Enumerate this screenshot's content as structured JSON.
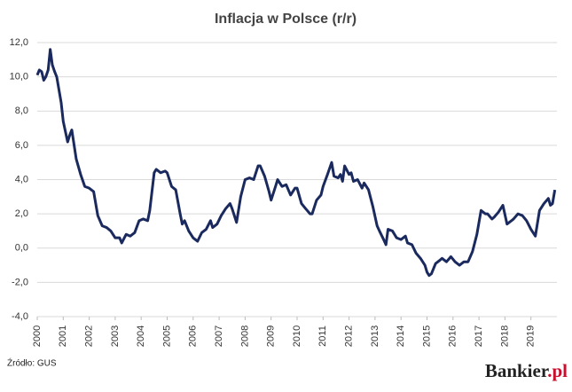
{
  "chart_data": {
    "type": "line",
    "title": "Inflacja w Polsce (r/r)",
    "x": [
      2000.0,
      2000.08,
      2000.17,
      2000.25,
      2000.33,
      2000.42,
      2000.5,
      2000.58,
      2000.67,
      2000.75,
      2000.92,
      2001.0,
      2001.17,
      2001.25,
      2001.33,
      2001.5,
      2001.67,
      2001.83,
      2002.0,
      2002.17,
      2002.33,
      2002.5,
      2002.67,
      2002.83,
      2003.0,
      2003.17,
      2003.25,
      2003.42,
      2003.58,
      2003.75,
      2003.92,
      2004.08,
      2004.25,
      2004.33,
      2004.5,
      2004.58,
      2004.75,
      2004.92,
      2005.0,
      2005.17,
      2005.33,
      2005.5,
      2005.58,
      2005.67,
      2005.83,
      2006.0,
      2006.17,
      2006.33,
      2006.5,
      2006.67,
      2006.75,
      2006.92,
      2007.08,
      2007.25,
      2007.42,
      2007.5,
      2007.67,
      2007.83,
      2008.0,
      2008.17,
      2008.33,
      2008.5,
      2008.58,
      2008.75,
      2008.92,
      2009.0,
      2009.17,
      2009.25,
      2009.42,
      2009.58,
      2009.75,
      2009.92,
      2010.0,
      2010.17,
      2010.33,
      2010.5,
      2010.58,
      2010.75,
      2010.92,
      2011.0,
      2011.17,
      2011.33,
      2011.42,
      2011.58,
      2011.67,
      2011.75,
      2011.83,
      2012.0,
      2012.08,
      2012.17,
      2012.33,
      2012.5,
      2012.58,
      2012.75,
      2012.92,
      2013.08,
      2013.17,
      2013.33,
      2013.42,
      2013.5,
      2013.67,
      2013.83,
      2014.0,
      2014.17,
      2014.25,
      2014.42,
      2014.58,
      2014.75,
      2014.92,
      2015.0,
      2015.08,
      2015.17,
      2015.33,
      2015.5,
      2015.58,
      2015.75,
      2015.92,
      2016.08,
      2016.25,
      2016.42,
      2016.58,
      2016.75,
      2016.92,
      2017.08,
      2017.25,
      2017.33,
      2017.5,
      2017.58,
      2017.75,
      2017.92,
      2018.08,
      2018.25,
      2018.33,
      2018.5,
      2018.67,
      2018.83,
      2019.0,
      2019.17,
      2019.33,
      2019.5,
      2019.67,
      2019.75,
      2019.83,
      2019.92
    ],
    "values": [
      10.1,
      10.4,
      10.3,
      9.8,
      10.0,
      10.4,
      11.6,
      10.7,
      10.3,
      10.0,
      8.5,
      7.4,
      6.2,
      6.6,
      6.9,
      5.2,
      4.3,
      3.6,
      3.5,
      3.3,
      1.9,
      1.3,
      1.2,
      1.0,
      0.6,
      0.6,
      0.3,
      0.8,
      0.7,
      0.9,
      1.6,
      1.7,
      1.6,
      2.2,
      4.4,
      4.6,
      4.4,
      4.5,
      4.4,
      3.6,
      3.4,
      2.0,
      1.4,
      1.6,
      1.0,
      0.6,
      0.4,
      0.9,
      1.1,
      1.6,
      1.2,
      1.4,
      1.9,
      2.3,
      2.6,
      2.3,
      1.5,
      3.0,
      4.0,
      4.1,
      4.0,
      4.8,
      4.8,
      4.2,
      3.3,
      2.8,
      3.6,
      4.0,
      3.6,
      3.7,
      3.1,
      3.5,
      3.5,
      2.6,
      2.3,
      2.0,
      2.0,
      2.8,
      3.1,
      3.6,
      4.3,
      5.0,
      4.2,
      4.1,
      4.3,
      3.9,
      4.8,
      4.3,
      4.4,
      3.9,
      4.0,
      3.5,
      3.8,
      3.4,
      2.4,
      1.3,
      1.0,
      0.5,
      0.2,
      1.1,
      1.0,
      0.6,
      0.5,
      0.7,
      0.3,
      0.2,
      -0.3,
      -0.6,
      -1.0,
      -1.4,
      -1.6,
      -1.5,
      -0.9,
      -0.7,
      -0.6,
      -0.8,
      -0.5,
      -0.8,
      -1.0,
      -0.8,
      -0.8,
      -0.2,
      0.8,
      2.2,
      2.0,
      2.0,
      1.7,
      1.8,
      2.1,
      2.5,
      1.4,
      1.6,
      1.7,
      2.0,
      1.9,
      1.6,
      1.1,
      0.7,
      2.2,
      2.6,
      2.9,
      2.5,
      2.6,
      3.4
    ],
    "color": "#1b2a5e",
    "xlim": [
      2000,
      2020
    ],
    "xticks": [
      2000,
      2001,
      2002,
      2003,
      2004,
      2005,
      2006,
      2007,
      2008,
      2009,
      2010,
      2011,
      2012,
      2013,
      2014,
      2015,
      2016,
      2017,
      2018,
      2019
    ],
    "ylim": [
      -4,
      12
    ],
    "yticks": [
      {
        "value": -4,
        "label": "-4,0"
      },
      {
        "value": -2,
        "label": "-2,0"
      },
      {
        "value": 0,
        "label": "0,0"
      },
      {
        "value": 2,
        "label": "2,0"
      },
      {
        "value": 4,
        "label": "4,0"
      },
      {
        "value": 6,
        "label": "6,0"
      },
      {
        "value": 8,
        "label": "8,0"
      },
      {
        "value": 10,
        "label": "10,0"
      },
      {
        "value": 12,
        "label": "12,0"
      }
    ],
    "grid": true
  },
  "source": "Źródło: GUS",
  "logo": {
    "name": "Bankier",
    "suffix": ".pl"
  }
}
